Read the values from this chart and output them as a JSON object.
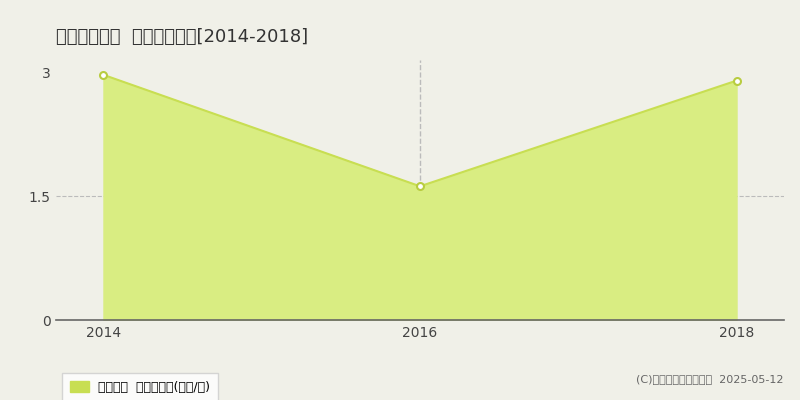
{
  "title": "淡路市夢舞台  土地価格推移[2014-2018]",
  "years": [
    2014,
    2016,
    2018
  ],
  "values": [
    2.97,
    1.62,
    2.9
  ],
  "ylim": [
    0,
    3.15
  ],
  "yticks": [
    0,
    1.5,
    3
  ],
  "xlim": [
    2013.7,
    2018.3
  ],
  "xticks": [
    2014,
    2016,
    2018
  ],
  "line_color": "#c8de52",
  "fill_color": "#d9ed82",
  "marker_color": "#ffffff",
  "marker_edge_color": "#b8cc40",
  "vline_x": 2016,
  "vline_color": "#bbbbbb",
  "grid_color": "#bbbbbb",
  "background_color": "#f0f0e8",
  "legend_label": "土地価格  平均坪単価(万円/坪)",
  "copyright_text": "(C)土地価格ドットコム  2025-05-12",
  "title_fontsize": 13,
  "tick_fontsize": 10,
  "legend_fontsize": 9,
  "copyright_fontsize": 8
}
